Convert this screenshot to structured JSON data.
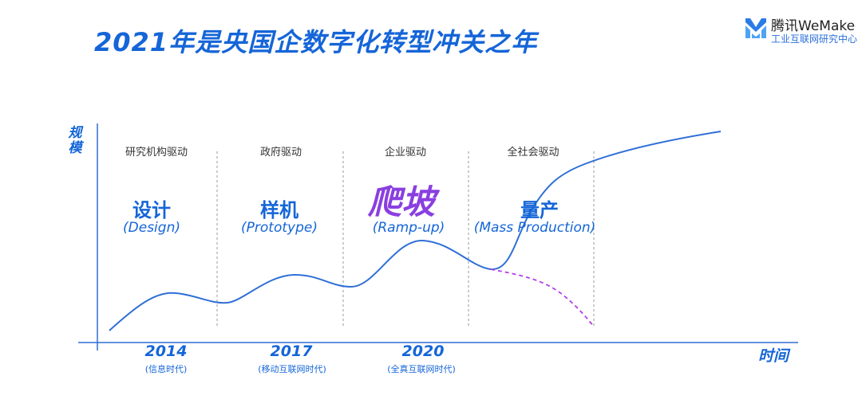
{
  "title": "2021年是央国企数字化转型冲关之年",
  "logo": {
    "brand": "腾讯WeMake",
    "sub": "工业互联网研究中心",
    "icon": "wemake-logo-icon",
    "color": "#2a7be8"
  },
  "axes": {
    "y_label": "规模",
    "x_label": "时间"
  },
  "stages": [
    {
      "driver": "研究机构驱动",
      "cn": "设计",
      "en": "(Design)"
    },
    {
      "driver": "政府驱动",
      "cn": "样机",
      "en": "(Prototype)"
    },
    {
      "driver": "企业驱动",
      "cn": "爬坡",
      "en": "(Ramp-up)",
      "highlight": true
    },
    {
      "driver": "全社会驱动",
      "cn": "量产",
      "en": "(Mass Production)"
    }
  ],
  "years": [
    {
      "year": "2014",
      "era": "(信息时代)"
    },
    {
      "year": "2017",
      "era": "(移动互联网时代)"
    },
    {
      "year": "2020",
      "era": "(全真互联网时代)"
    }
  ],
  "colors": {
    "accent": "#1565d8",
    "highlight": "#8a3fe0",
    "curve": "#2f6fd6",
    "dashed_curve": "#b13fe8"
  }
}
